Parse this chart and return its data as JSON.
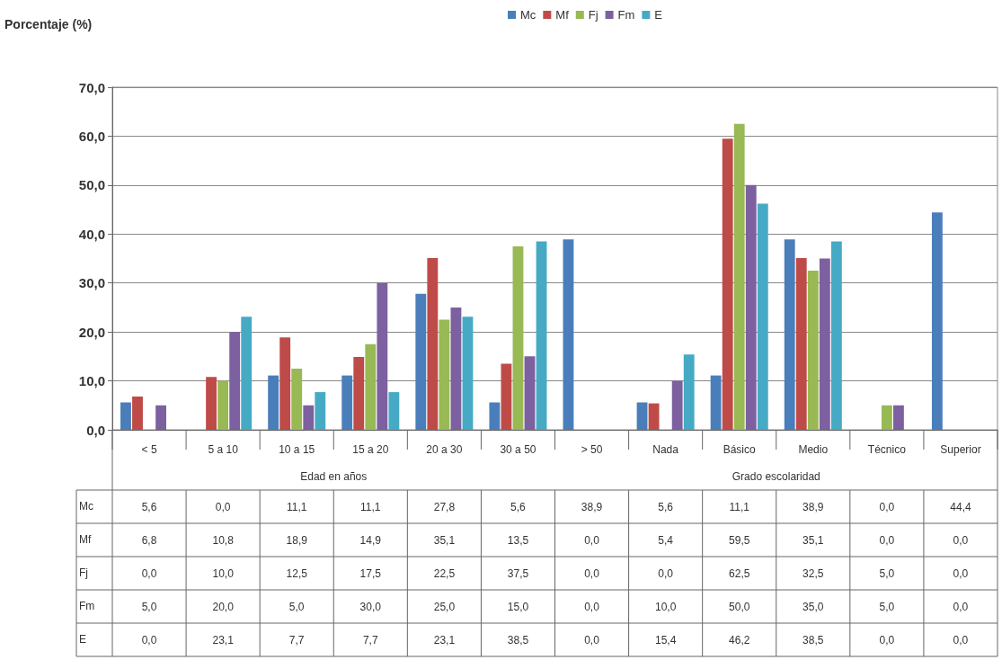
{
  "chart_data": {
    "type": "bar",
    "ylabel": "Porcentaje (%)",
    "categories": [
      "< 5",
      "5 a 10",
      "10 a 15",
      "15 a 20",
      "20 a 30",
      "30 a 50",
      "> 50",
      "Nada",
      "Básico",
      "Medio",
      "Técnico",
      "Superior"
    ],
    "series": [
      {
        "name": "Mc",
        "color": "#4a7ebb",
        "values": [
          5.6,
          0.0,
          11.1,
          11.1,
          27.8,
          5.6,
          38.9,
          5.6,
          11.1,
          38.9,
          0.0,
          44.4
        ],
        "value_labels": [
          "5,6",
          "0,0",
          "11,1",
          "11,1",
          "27,8",
          "5,6",
          "38,9",
          "5,6",
          "11,1",
          "38,9",
          "0,0",
          "44,4"
        ]
      },
      {
        "name": "Mf",
        "color": "#be4b48",
        "values": [
          6.8,
          10.8,
          18.9,
          14.9,
          35.1,
          13.5,
          0.0,
          5.4,
          59.5,
          35.1,
          0.0,
          0.0
        ],
        "value_labels": [
          "6,8",
          "10,8",
          "18,9",
          "14,9",
          "35,1",
          "13,5",
          "0,0",
          "5,4",
          "59,5",
          "35,1",
          "0,0",
          "0,0"
        ]
      },
      {
        "name": "Fj",
        "color": "#98b954",
        "values": [
          0.0,
          10.0,
          12.5,
          17.5,
          22.5,
          37.5,
          0.0,
          0.0,
          62.5,
          32.5,
          5.0,
          0.0
        ],
        "value_labels": [
          "0,0",
          "10,0",
          "12,5",
          "17,5",
          "22,5",
          "37,5",
          "0,0",
          "0,0",
          "62,5",
          "32,5",
          "5,0",
          "0,0"
        ]
      },
      {
        "name": "Fm",
        "color": "#7d60a0",
        "values": [
          5.0,
          20.0,
          5.0,
          30.0,
          25.0,
          15.0,
          0.0,
          10.0,
          50.0,
          35.0,
          5.0,
          0.0
        ],
        "value_labels": [
          "5,0",
          "20,0",
          "5,0",
          "30,0",
          "25,0",
          "15,0",
          "0,0",
          "10,0",
          "50,0",
          "35,0",
          "5,0",
          "0,0"
        ]
      },
      {
        "name": "E",
        "color": "#46aac5",
        "values": [
          0.0,
          23.1,
          7.7,
          7.7,
          23.1,
          38.5,
          0.0,
          15.4,
          46.2,
          38.5,
          0.0,
          0.0
        ],
        "value_labels": [
          "0,0",
          "23,1",
          "7,7",
          "7,7",
          "23,1",
          "38,5",
          "0,0",
          "15,4",
          "46,2",
          "38,5",
          "0,0",
          "0,0"
        ]
      }
    ],
    "ylim": [
      0,
      70
    ],
    "yticks": [
      {
        "value": 0,
        "label": "0,0"
      },
      {
        "value": 10,
        "label": "10,0"
      },
      {
        "value": 20,
        "label": "20,0"
      },
      {
        "value": 30,
        "label": "30,0"
      },
      {
        "value": 40,
        "label": "40,0"
      },
      {
        "value": 50,
        "label": "50,0"
      },
      {
        "value": 60,
        "label": "60,0"
      },
      {
        "value": 70,
        "label": "70,0"
      }
    ],
    "grid": "y",
    "legend": "top",
    "annotations": [
      "Edad en años",
      "Grado escolaridad"
    ]
  }
}
